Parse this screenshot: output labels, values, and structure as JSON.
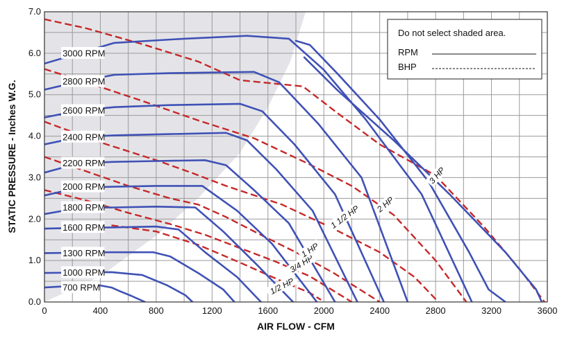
{
  "chart_data": {
    "type": "line",
    "title": "",
    "xlabel": "AIR FLOW - CFM",
    "ylabel": "STATIC PRESSURE - Inches W.G.",
    "xlim": [
      0,
      3600
    ],
    "ylim": [
      0,
      7
    ],
    "x_ticks": [
      0,
      400,
      800,
      1200,
      1600,
      2000,
      2400,
      2800,
      3200,
      3600
    ],
    "x_tick_labels": [
      "0",
      "400",
      "800",
      "1200",
      "1600",
      "2000",
      "2400",
      "2800",
      "3200",
      "3600"
    ],
    "y_ticks": [
      0,
      1,
      2,
      3,
      4,
      5,
      6,
      7
    ],
    "y_tick_labels": [
      "0.0",
      "1.0",
      "2.0",
      "3.0",
      "4.0",
      "5.0",
      "6.0",
      "7.0"
    ],
    "grid": true,
    "colors": {
      "rpm": "#3f51b5",
      "bhp": "#c62828",
      "shade": "#e4e4e8",
      "grid": "#9a9a9a"
    },
    "shaded_region": {
      "boundary": [
        [
          0,
          0
        ],
        [
          400,
          0.62
        ],
        [
          800,
          1.6
        ],
        [
          1100,
          2.5
        ],
        [
          1400,
          3.6
        ],
        [
          1600,
          4.7
        ],
        [
          1760,
          5.8
        ],
        [
          1870,
          7.0
        ]
      ]
    },
    "legend": {
      "position": "top-right",
      "note": "Do not select shaded area.",
      "entries": [
        {
          "name": "RPM",
          "style": "solid"
        },
        {
          "name": "BHP",
          "style": "dashed"
        }
      ]
    },
    "rpm_series": [
      {
        "name": "700 RPM",
        "label_at": [
          60,
          0.35
        ],
        "points": [
          [
            0,
            0.35
          ],
          [
            150,
            0.38
          ],
          [
            400,
            0.4
          ],
          [
            480,
            0.35
          ],
          [
            540,
            0.26
          ],
          [
            620,
            0.15
          ],
          [
            680,
            0.06
          ],
          [
            720,
            0
          ]
        ]
      },
      {
        "name": "1000 RPM",
        "label_at": [
          60,
          0.71
        ],
        "points": [
          [
            0,
            0.7
          ],
          [
            250,
            0.71
          ],
          [
            480,
            0.72
          ],
          [
            700,
            0.65
          ],
          [
            880,
            0.4
          ],
          [
            1010,
            0.16
          ],
          [
            1060,
            0
          ]
        ]
      },
      {
        "name": "1300 RPM",
        "label_at": [
          60,
          1.18
        ],
        "points": [
          [
            0,
            1.18
          ],
          [
            250,
            1.19
          ],
          [
            480,
            1.2
          ],
          [
            780,
            1.2
          ],
          [
            900,
            1.1
          ],
          [
            1100,
            0.7
          ],
          [
            1280,
            0.3
          ],
          [
            1360,
            0
          ]
        ]
      },
      {
        "name": "1600 RPM",
        "label_at": [
          60,
          1.8
        ],
        "points": [
          [
            0,
            1.77
          ],
          [
            250,
            1.79
          ],
          [
            500,
            1.8
          ],
          [
            800,
            1.82
          ],
          [
            960,
            1.75
          ],
          [
            1150,
            1.2
          ],
          [
            1380,
            0.6
          ],
          [
            1550,
            0
          ]
        ]
      },
      {
        "name": "1800 RPM",
        "label_at": [
          60,
          2.28
        ],
        "points": [
          [
            0,
            2.12
          ],
          [
            250,
            2.27
          ],
          [
            500,
            2.28
          ],
          [
            800,
            2.3
          ],
          [
            1080,
            2.28
          ],
          [
            1280,
            1.7
          ],
          [
            1520,
            0.9
          ],
          [
            1780,
            0
          ]
        ]
      },
      {
        "name": "2000 RPM",
        "label_at": [
          60,
          2.78
        ],
        "points": [
          [
            0,
            2.57
          ],
          [
            250,
            2.76
          ],
          [
            500,
            2.78
          ],
          [
            800,
            2.8
          ],
          [
            1130,
            2.8
          ],
          [
            1380,
            2.2
          ],
          [
            1630,
            1.4
          ],
          [
            1950,
            0
          ]
        ]
      },
      {
        "name": "2200 RPM",
        "label_at": [
          60,
          3.35
        ],
        "points": [
          [
            0,
            3.12
          ],
          [
            250,
            3.35
          ],
          [
            500,
            3.38
          ],
          [
            800,
            3.4
          ],
          [
            1150,
            3.42
          ],
          [
            1300,
            3.3
          ],
          [
            1500,
            2.7
          ],
          [
            1750,
            1.9
          ],
          [
            2080,
            0
          ]
        ]
      },
      {
        "name": "2400 RPM",
        "label_at": [
          60,
          3.98
        ],
        "points": [
          [
            0,
            3.8
          ],
          [
            250,
            3.98
          ],
          [
            500,
            4.02
          ],
          [
            900,
            4.05
          ],
          [
            1300,
            4.08
          ],
          [
            1450,
            3.9
          ],
          [
            1660,
            3.2
          ],
          [
            1920,
            2.2
          ],
          [
            2240,
            0
          ]
        ]
      },
      {
        "name": "2600 RPM",
        "label_at": [
          60,
          4.62
        ],
        "points": [
          [
            0,
            4.45
          ],
          [
            250,
            4.62
          ],
          [
            500,
            4.7
          ],
          [
            900,
            4.75
          ],
          [
            1400,
            4.78
          ],
          [
            1560,
            4.6
          ],
          [
            1790,
            3.8
          ],
          [
            2080,
            2.6
          ],
          [
            2430,
            0
          ]
        ]
      },
      {
        "name": "2800 RPM",
        "label_at": [
          60,
          5.32
        ],
        "points": [
          [
            0,
            5.12
          ],
          [
            250,
            5.32
          ],
          [
            500,
            5.48
          ],
          [
            900,
            5.52
          ],
          [
            1500,
            5.55
          ],
          [
            1680,
            5.3
          ],
          [
            1960,
            4.3
          ],
          [
            2270,
            3.0
          ],
          [
            2600,
            0
          ]
        ]
      },
      {
        "name": "3000 RPM",
        "label_at": [
          60,
          6.0
        ],
        "points": [
          [
            0,
            5.75
          ],
          [
            250,
            6.0
          ],
          [
            500,
            6.25
          ],
          [
            1000,
            6.35
          ],
          [
            1450,
            6.42
          ],
          [
            1750,
            6.35
          ],
          [
            2000,
            5.6
          ],
          [
            2300,
            4.4
          ],
          [
            2700,
            2.6
          ],
          [
            3060,
            0
          ]
        ]
      },
      {
        "name": "",
        "points": [
          [
            1800,
            6.3
          ],
          [
            1900,
            6.2
          ],
          [
            2100,
            5.5
          ],
          [
            2400,
            4.4
          ],
          [
            2750,
            2.9
          ],
          [
            3040,
            1.2
          ],
          [
            3180,
            0.3
          ],
          [
            3300,
            0
          ]
        ]
      },
      {
        "name": "",
        "points": [
          [
            1860,
            5.9
          ],
          [
            2100,
            5.1
          ],
          [
            2500,
            3.9
          ],
          [
            2900,
            2.6
          ],
          [
            3300,
            1.2
          ],
          [
            3520,
            0.3
          ],
          [
            3560,
            0
          ]
        ]
      }
    ],
    "bhp_series": [
      {
        "name": "1/2 HP",
        "label_at": [
          1700,
          0.38
        ],
        "label_angle": -27,
        "points": [
          [
            480,
            1.85
          ],
          [
            800,
            1.7
          ],
          [
            1100,
            1.38
          ],
          [
            1400,
            0.95
          ],
          [
            1700,
            0.5
          ],
          [
            1900,
            0.22
          ],
          [
            1980,
            0.05
          ]
        ]
      },
      {
        "name": "3/4 HP",
        "label_at": [
          1840,
          0.92
        ],
        "label_angle": -32,
        "points": [
          [
            0,
            2.7
          ],
          [
            300,
            2.45
          ],
          [
            600,
            2.15
          ],
          [
            900,
            1.88
          ],
          [
            1150,
            1.62
          ],
          [
            1400,
            1.3
          ],
          [
            1650,
            0.98
          ],
          [
            1900,
            0.62
          ],
          [
            2200,
            0
          ]
        ]
      },
      {
        "name": "1 HP",
        "label_at": [
          1900,
          1.25
        ],
        "label_angle": -33,
        "points": [
          [
            0,
            3.5
          ],
          [
            300,
            3.15
          ],
          [
            600,
            2.8
          ],
          [
            900,
            2.5
          ],
          [
            1100,
            2.35
          ],
          [
            1300,
            2.05
          ],
          [
            1560,
            1.6
          ],
          [
            1800,
            1.2
          ],
          [
            2070,
            0.7
          ],
          [
            2400,
            0
          ]
        ]
      },
      {
        "name": "1 1/2 HP",
        "label_at": [
          2150,
          2.05
        ],
        "label_angle": -36,
        "points": [
          [
            0,
            4.35
          ],
          [
            400,
            3.85
          ],
          [
            800,
            3.42
          ],
          [
            1050,
            3.12
          ],
          [
            1300,
            2.8
          ],
          [
            1700,
            2.35
          ],
          [
            2050,
            1.8
          ],
          [
            2400,
            1.2
          ],
          [
            2650,
            0.6
          ],
          [
            2820,
            0
          ]
        ]
      },
      {
        "name": "2 HP",
        "label_at": [
          2440,
          2.35
        ],
        "label_angle": -40,
        "points": [
          [
            0,
            5.62
          ],
          [
            300,
            5.3
          ],
          [
            700,
            4.85
          ],
          [
            1100,
            4.38
          ],
          [
            1500,
            3.95
          ],
          [
            1880,
            3.35
          ],
          [
            2200,
            2.8
          ],
          [
            2500,
            2.1
          ],
          [
            2800,
            1.0
          ],
          [
            3020,
            0
          ]
        ]
      },
      {
        "name": "3 HP",
        "label_at": [
          2810,
          3.05
        ],
        "label_angle": -48,
        "points": [
          [
            0,
            6.82
          ],
          [
            300,
            6.6
          ],
          [
            700,
            6.22
          ],
          [
            1100,
            5.8
          ],
          [
            1400,
            5.35
          ],
          [
            1850,
            5.2
          ],
          [
            2100,
            4.55
          ],
          [
            2400,
            3.8
          ],
          [
            2800,
            3.05
          ],
          [
            3150,
            1.8
          ],
          [
            3400,
            0.8
          ],
          [
            3580,
            0
          ]
        ]
      }
    ]
  }
}
